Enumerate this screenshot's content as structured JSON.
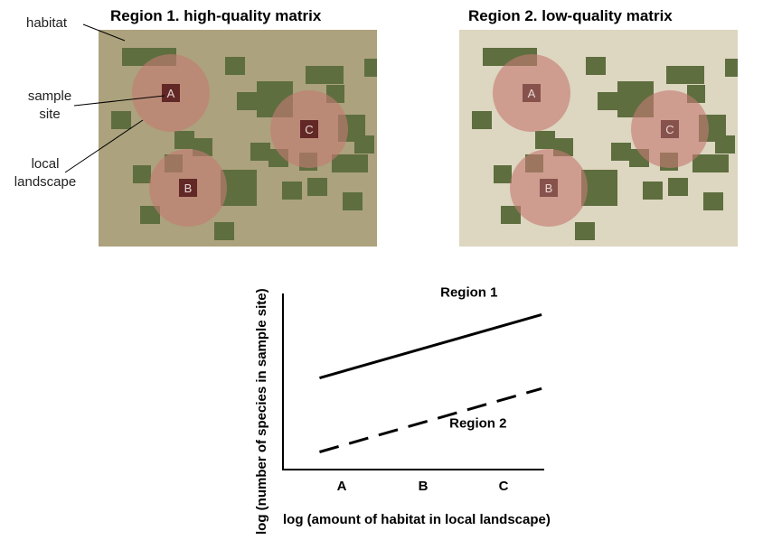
{
  "regions": [
    {
      "title": "Region 1. high-quality matrix",
      "matrix_color": "#aca27d"
    },
    {
      "title": "Region 2. low-quality matrix",
      "matrix_color": "#ddd6c0"
    }
  ],
  "colors": {
    "habitat_patch": "#5e6e3f",
    "local_landscape": "#c57b72",
    "sample_site": "#5a1f1f"
  },
  "sites": [
    "A",
    "B",
    "C"
  ],
  "annotations": {
    "habitat": "habitat",
    "sample_site_line1": "sample",
    "sample_site_line2": "site",
    "local_landscape_line1": "local",
    "local_landscape_line2": "landscape"
  },
  "chart_data": {
    "type": "line",
    "xlabel": "log (amount of habitat in local landscape)",
    "ylabel": "log (number of species in sample site)",
    "categories": [
      "A",
      "B",
      "C"
    ],
    "xlim": [
      0,
      1
    ],
    "ylim": [
      0,
      1
    ],
    "series": [
      {
        "name": "Region 1",
        "style": "solid",
        "x": [
          0.14,
          0.99
        ],
        "y": [
          0.52,
          0.88
        ]
      },
      {
        "name": "Region 2",
        "style": "dashed",
        "x": [
          0.14,
          0.99
        ],
        "y": [
          0.1,
          0.46
        ]
      }
    ]
  }
}
